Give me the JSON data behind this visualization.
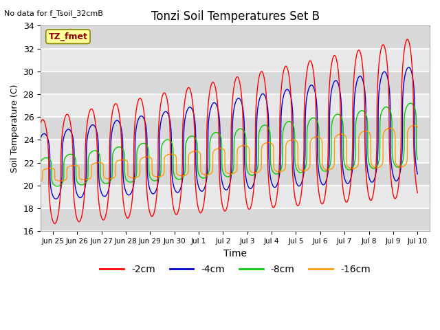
{
  "title": "Tonzi Soil Temperatures Set B",
  "xlabel": "Time",
  "ylabel": "Soil Temperature (C)",
  "no_data_label": "No data for f_Tsoil_32cmB",
  "annotation_label": "TZ_fmet",
  "ylim": [
    16,
    34
  ],
  "background_color": "#ffffff",
  "plot_bg_color": "#e8e8e8",
  "series": [
    {
      "label": "-2cm",
      "color": "#ff0000",
      "lw": 1.0
    },
    {
      "label": "-4cm",
      "color": "#0000cc",
      "lw": 1.0
    },
    {
      "label": "-8cm",
      "color": "#00cc00",
      "lw": 1.0
    },
    {
      "label": "-16cm",
      "color": "#ff9900",
      "lw": 1.0
    }
  ],
  "tick_labels": [
    "Jun 25",
    "Jun 26",
    "Jun 27",
    "Jun 28",
    "Jun 29",
    "Jun 30",
    "Jul 1",
    "Jul 2",
    "Jul 3",
    "Jul 4",
    "Jul 5",
    "Jul 6",
    "Jul 7",
    "Jul 8",
    "Jul 9",
    "Jul 10"
  ],
  "tick_positions": [
    1,
    2,
    3,
    4,
    5,
    6,
    7,
    8,
    9,
    10,
    11,
    12,
    13,
    14,
    15,
    16
  ],
  "yticks": [
    16,
    18,
    20,
    22,
    24,
    26,
    28,
    30,
    32,
    34
  ],
  "band_colors": [
    "#e0e0e0",
    "#d0d0d0"
  ],
  "white_band": "#f0f0f0"
}
